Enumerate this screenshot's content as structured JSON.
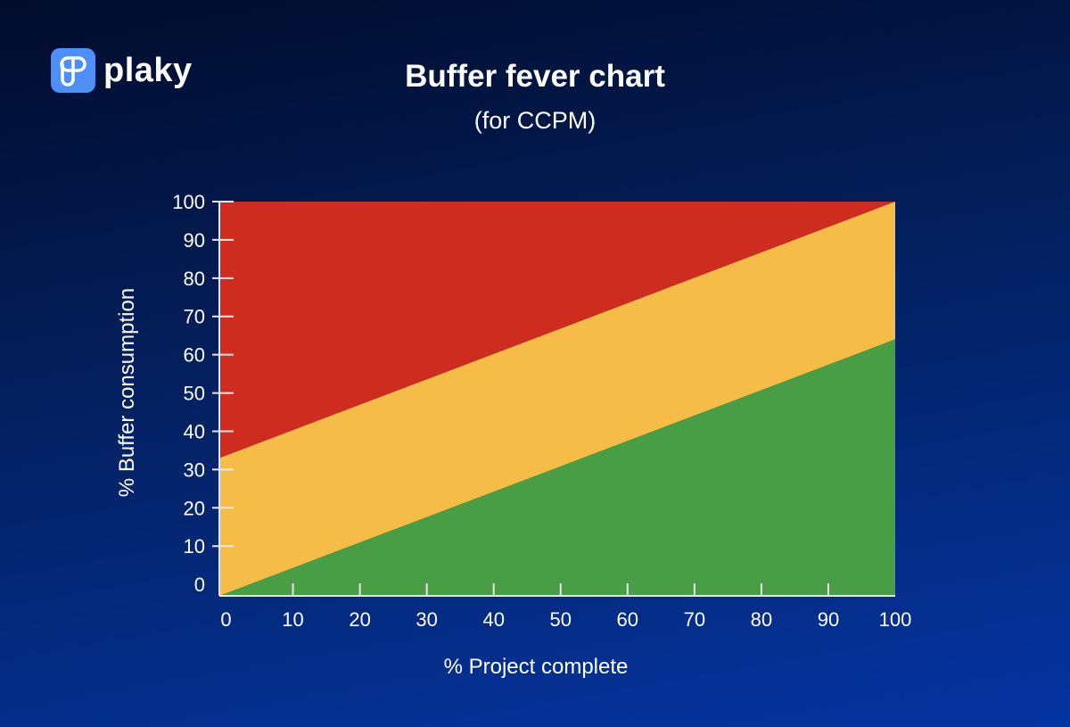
{
  "brand": {
    "name": "plaky",
    "icon": "plaky-logo-icon",
    "color": "#4d8ef7"
  },
  "chart_data": {
    "type": "area",
    "title": "Buffer fever chart",
    "subtitle": "(for CCPM)",
    "xlabel": "% Project complete",
    "ylabel": "% Buffer consumption",
    "xlim": [
      -1,
      100
    ],
    "ylim": [
      -3,
      100
    ],
    "xticks": [
      0,
      10,
      20,
      30,
      40,
      50,
      60,
      70,
      80,
      90,
      100
    ],
    "yticks": [
      0,
      10,
      20,
      30,
      40,
      50,
      60,
      70,
      80,
      90,
      100
    ],
    "grid": false,
    "zones": [
      {
        "color": "#cf2c20",
        "lower": {
          "x": [
            0,
            100
          ],
          "y": [
            33,
            100
          ]
        },
        "upper": {
          "x": [
            0,
            100
          ],
          "y": [
            100,
            100
          ]
        }
      },
      {
        "color": "#f5bc47",
        "lower": {
          "x": [
            0,
            100
          ],
          "y": [
            -3,
            64
          ]
        },
        "upper": {
          "x": [
            0,
            100
          ],
          "y": [
            33,
            100
          ]
        }
      },
      {
        "color": "#479e44",
        "lower": {
          "x": [
            0,
            100
          ],
          "y": [
            -3,
            -3
          ]
        },
        "upper": {
          "x": [
            0,
            100
          ],
          "y": [
            -3,
            64
          ]
        }
      }
    ]
  }
}
